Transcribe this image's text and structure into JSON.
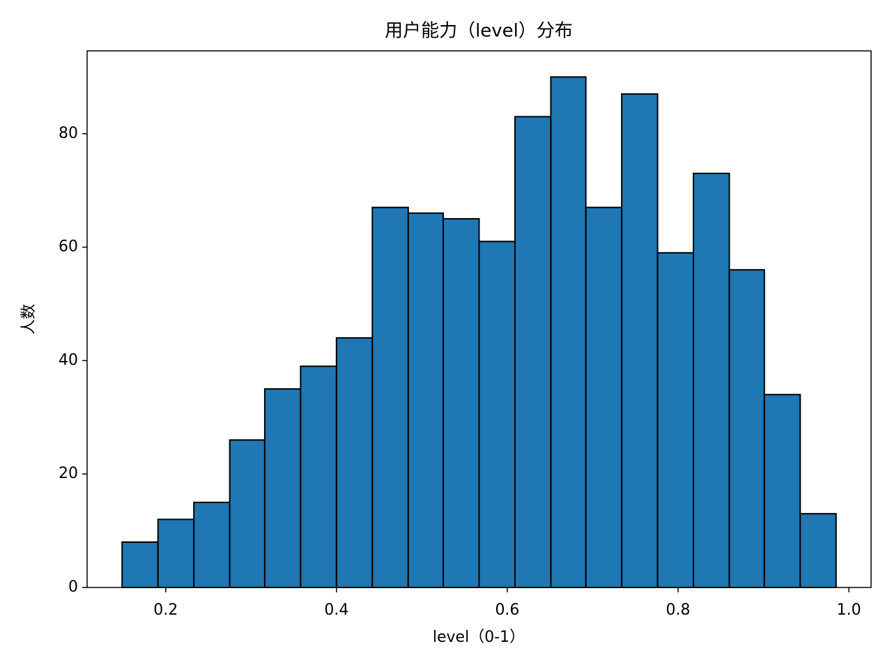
{
  "chart_data": {
    "type": "histogram",
    "title": "用户能力（level）分布",
    "x_label": "level（0-1）",
    "y_label": "人数",
    "bins": [
      0.149,
      0.191,
      0.233,
      0.275,
      0.316,
      0.358,
      0.4,
      0.442,
      0.484,
      0.525,
      0.567,
      0.609,
      0.651,
      0.692,
      0.734,
      0.776,
      0.818,
      0.86,
      0.901,
      0.943,
      0.985
    ],
    "counts": [
      8,
      12,
      15,
      26,
      35,
      39,
      44,
      67,
      66,
      65,
      61,
      83,
      90,
      67,
      87,
      59,
      73,
      56,
      34,
      13
    ],
    "color": "#1f77b4",
    "edgecolor": "#000000",
    "xlim": [
      0.108,
      1.026
    ],
    "xticks": [
      0.2,
      0.4,
      0.6,
      0.8,
      {
        "value": 1,
        "label": "1.0"
      }
    ],
    "ylim": [
      0,
      94.6
    ],
    "yticks": [
      0,
      20,
      40,
      60,
      80
    ]
  }
}
